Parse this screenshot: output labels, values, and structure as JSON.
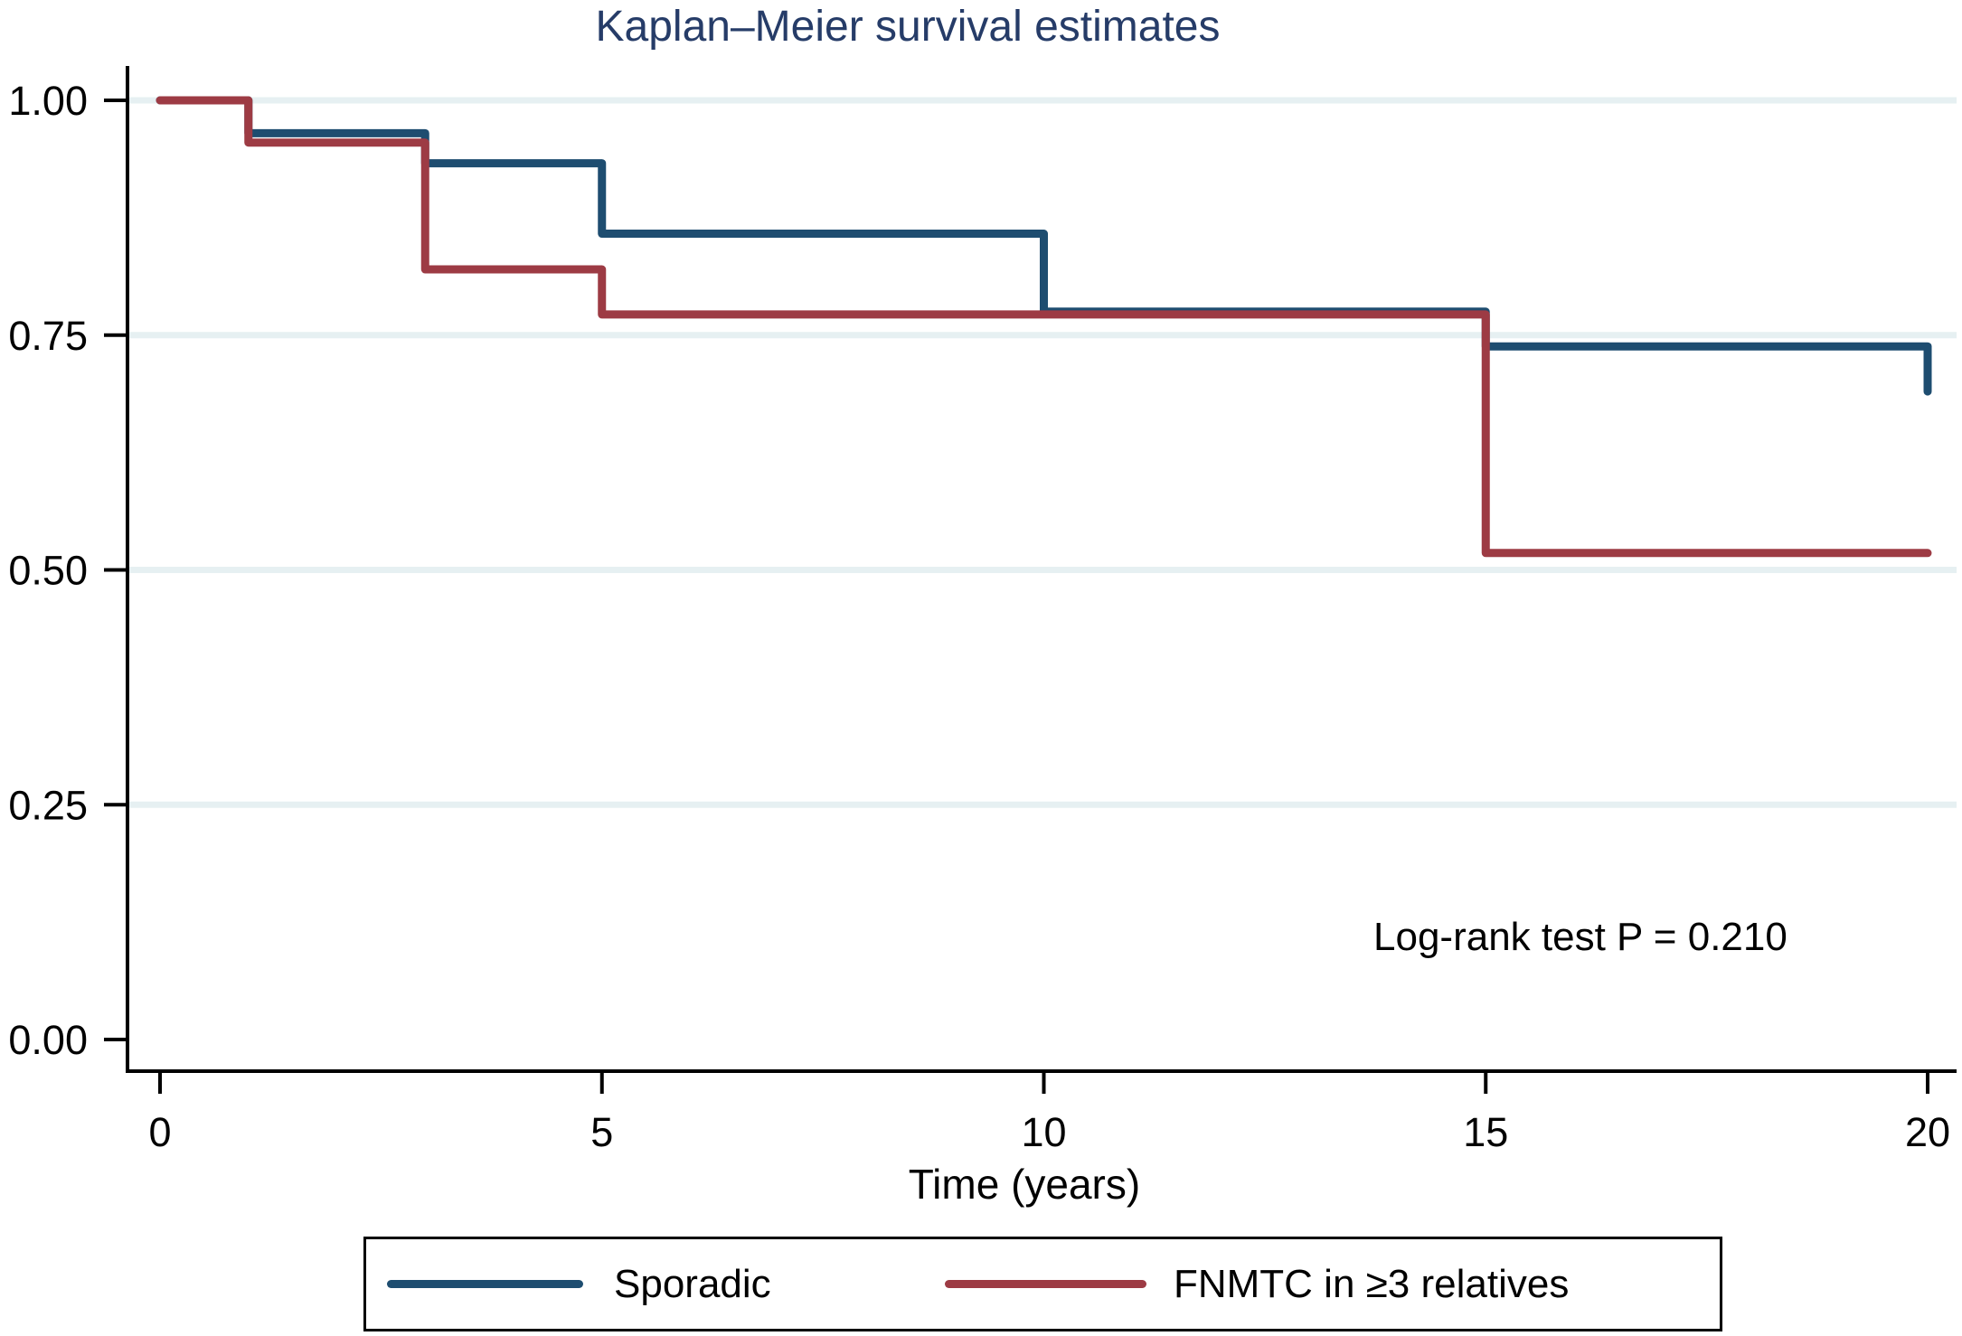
{
  "colors": {
    "title": "#263c68",
    "axis": "#000000",
    "text": "#000000",
    "gridline": "#e6f0f2",
    "background": "#ffffff"
  },
  "chart_data": {
    "type": "line",
    "line_style": "step-post (Kaplan–Meier survival curves)",
    "title": "Kaplan–Meier survival estimates",
    "xlabel": "Time (years)",
    "ylabel": "",
    "xlim": [
      0,
      20
    ],
    "ylim": [
      0.0,
      1.0
    ],
    "grid": "horizontal gridlines at y ticks above 0.00",
    "legend_position": "bottom, framed box",
    "annotation": "Log-rank test P = 0.210",
    "x_ticks": [
      {
        "value": 0,
        "label": "0"
      },
      {
        "value": 5,
        "label": "5"
      },
      {
        "value": 10,
        "label": "10"
      },
      {
        "value": 15,
        "label": "15"
      },
      {
        "value": 20,
        "label": "20"
      }
    ],
    "y_ticks": [
      {
        "value": 0.0,
        "label": "0.00",
        "grid": false
      },
      {
        "value": 0.25,
        "label": "0.25",
        "grid": true
      },
      {
        "value": 0.5,
        "label": "0.50",
        "grid": true
      },
      {
        "value": 0.75,
        "label": "0.75",
        "grid": true
      },
      {
        "value": 1.0,
        "label": "1.00",
        "grid": true
      }
    ],
    "series": [
      {
        "name": "Sporadic",
        "color": "#1e4d70",
        "step_points": [
          [
            0,
            1.0
          ],
          [
            1,
            0.965
          ],
          [
            3,
            0.933
          ],
          [
            5,
            0.858
          ],
          [
            10,
            0.775
          ],
          [
            15,
            0.738
          ],
          [
            20,
            0.69
          ]
        ]
      },
      {
        "name": "FNMTC in ≥3 relatives",
        "color": "#9d3b44",
        "step_points": [
          [
            0,
            1.0
          ],
          [
            1,
            0.955
          ],
          [
            3,
            0.82
          ],
          [
            5,
            0.772
          ],
          [
            15,
            0.518
          ],
          [
            20,
            0.518
          ]
        ]
      }
    ]
  }
}
